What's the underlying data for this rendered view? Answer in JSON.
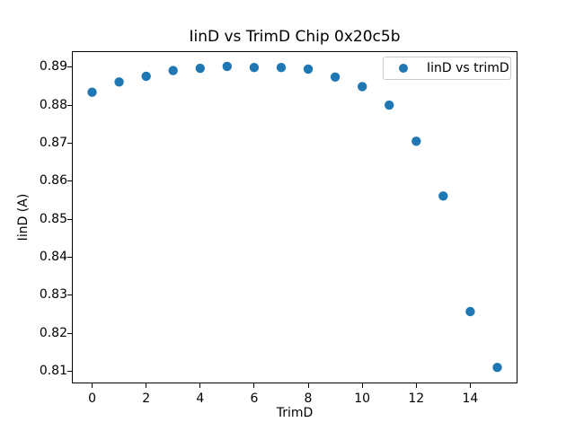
{
  "chart_data": {
    "type": "scatter",
    "title": "IinD vs TrimD Chip 0x20c5b",
    "xlabel": "TrimD",
    "ylabel": "IinD (A)",
    "series": [
      {
        "name": "IinD vs trimD",
        "x": [
          0,
          1,
          2,
          3,
          4,
          5,
          6,
          7,
          8,
          9,
          10,
          11,
          12,
          13,
          14,
          15
        ],
        "y": [
          0.8834,
          0.8861,
          0.8876,
          0.8891,
          0.8897,
          0.8902,
          0.8899,
          0.8899,
          0.8895,
          0.8874,
          0.8849,
          0.88,
          0.8705,
          0.8561,
          0.8257,
          0.811
        ],
        "marker_color": "#1f77b4",
        "marker_radius_px": 5.2
      }
    ],
    "xlim": [
      -0.75,
      15.75
    ],
    "ylim": [
      0.8068,
      0.8942
    ],
    "xticks": {
      "values": [
        0,
        2,
        4,
        6,
        8,
        10,
        12,
        14
      ],
      "labels": [
        "0",
        "2",
        "4",
        "6",
        "8",
        "10",
        "12",
        "14"
      ]
    },
    "yticks": {
      "values": [
        0.81,
        0.82,
        0.83,
        0.84,
        0.85,
        0.86,
        0.87,
        0.88,
        0.89
      ],
      "labels": [
        "0.81",
        "0.82",
        "0.83",
        "0.84",
        "0.85",
        "0.86",
        "0.87",
        "0.88",
        "0.89"
      ]
    },
    "grid": false,
    "legend": {
      "visible": true,
      "position": "upper right"
    },
    "colors": {
      "marker": "#1f77b4",
      "spine": "#000000"
    }
  }
}
